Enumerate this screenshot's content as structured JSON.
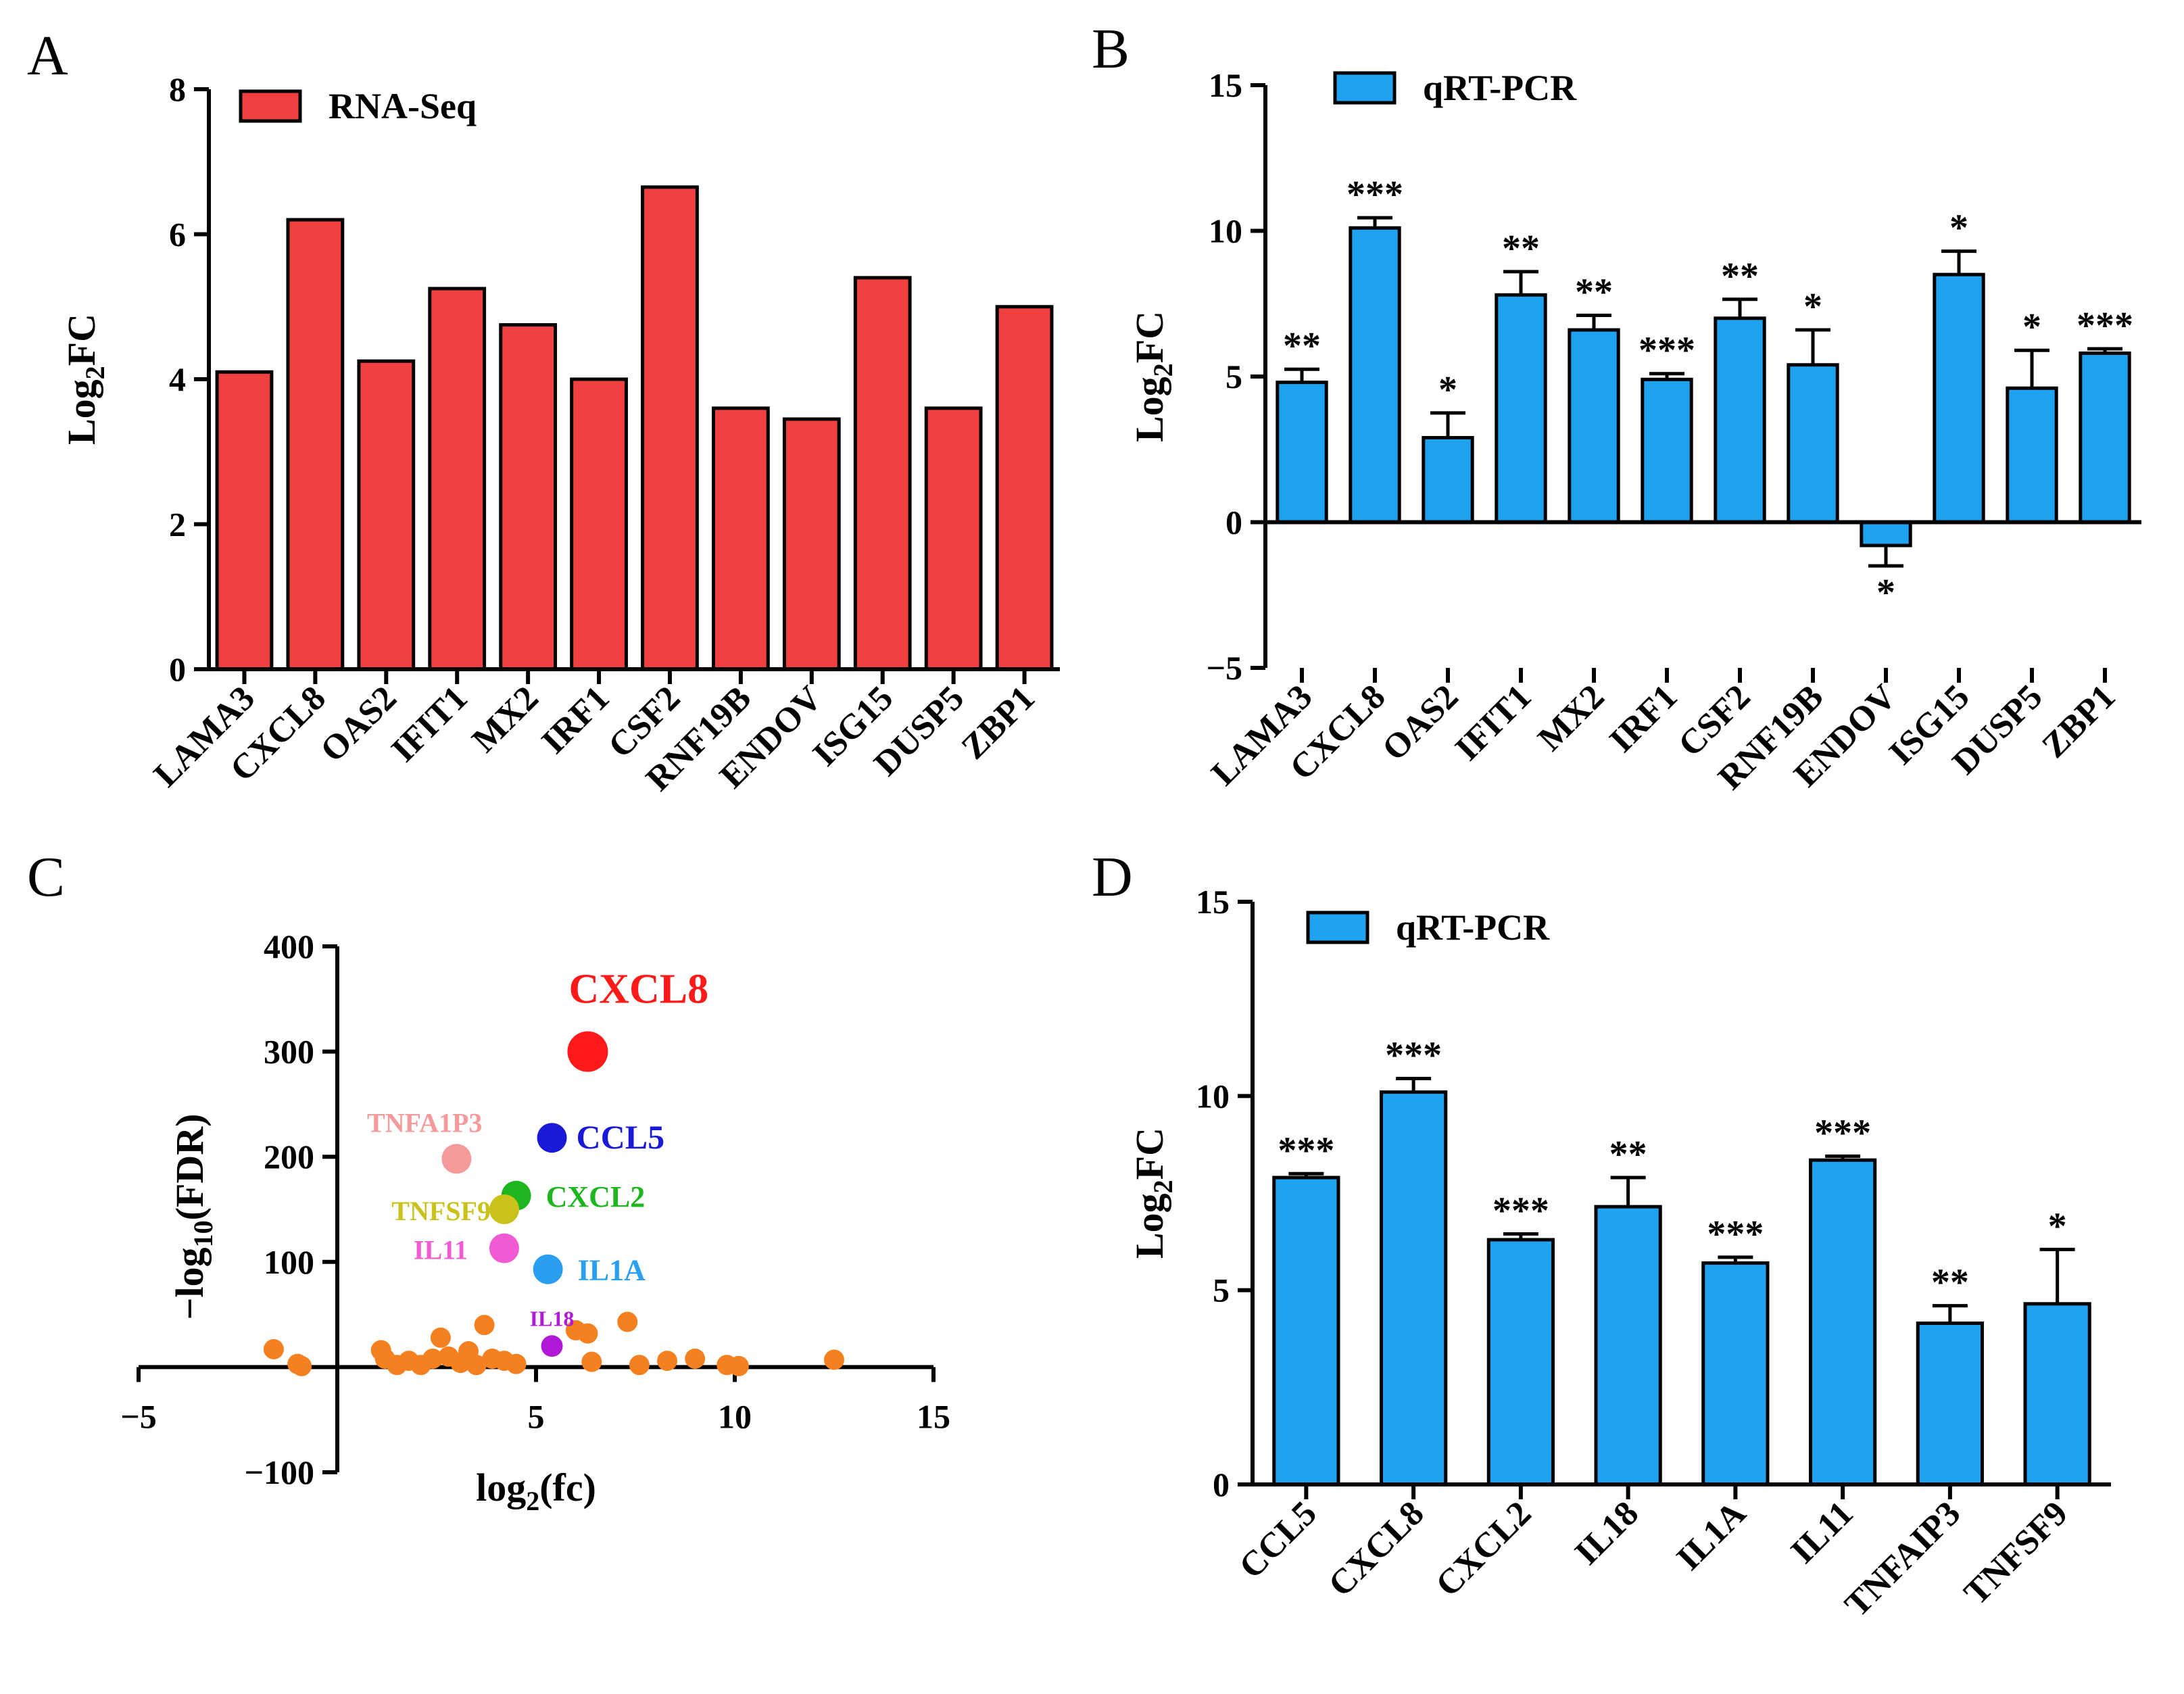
{
  "colors": {
    "rna_bar": "#f04040",
    "qpcr_bar": "#1fa2f0",
    "scatter_default": "#f5801f"
  },
  "chart_data": [
    {
      "panel": "A",
      "type": "bar",
      "legend": "RNA-Seq",
      "ylabel": "Log",
      "ylabel_sub": "2",
      "ylabel_suffix": "FC",
      "ylim": [
        0,
        8
      ],
      "yticks": [
        0,
        2,
        4,
        6,
        8
      ],
      "categories": [
        "LAMA3",
        "CXCL8",
        "OAS2",
        "IFIT1",
        "MX2",
        "IRF1",
        "CSF2",
        "RNF19B",
        "ENDOV",
        "ISG15",
        "DUSP5",
        "ZBP1"
      ],
      "values": [
        4.1,
        6.2,
        4.25,
        5.25,
        4.75,
        4.0,
        6.65,
        3.6,
        3.45,
        5.4,
        3.6,
        5.0
      ]
    },
    {
      "panel": "B",
      "type": "bar",
      "legend": "qRT-PCR",
      "ylabel": "Log",
      "ylabel_sub": "2",
      "ylabel_suffix": "FC",
      "ylim": [
        -5,
        15
      ],
      "yticks": [
        -5,
        0,
        5,
        10,
        15
      ],
      "ytick_labels": [
        "−5",
        "0",
        "5",
        "10",
        "15"
      ],
      "categories": [
        "LAMA3",
        "CXCL8",
        "OAS2",
        "IFIT1",
        "MX2",
        "IRF1",
        "CSF2",
        "RNF19B",
        "ENDOV",
        "ISG15",
        "DUSP5",
        "ZBP1"
      ],
      "values": [
        4.8,
        10.1,
        2.9,
        7.8,
        6.6,
        4.9,
        7.0,
        5.4,
        -0.8,
        8.5,
        4.6,
        5.8
      ],
      "errors": [
        0.45,
        0.35,
        0.85,
        0.8,
        0.5,
        0.2,
        0.65,
        1.2,
        0.7,
        0.8,
        1.3,
        0.15
      ],
      "significance": [
        "**",
        "***",
        "*",
        "**",
        "**",
        "***",
        "**",
        "*",
        "*",
        "*",
        "*",
        "***"
      ]
    },
    {
      "panel": "C",
      "type": "scatter",
      "xlabel": "log",
      "xlabel_sub": "2",
      "xlabel_suffix": "(fc)",
      "ylabel_prefix": "−log",
      "ylabel_sub": "10",
      "ylabel_suffix": "(FDR)",
      "xlim": [
        -5,
        15
      ],
      "ylim": [
        -100,
        400
      ],
      "xticks": [
        -5,
        0,
        5,
        10,
        15
      ],
      "xtick_labels": [
        "−5",
        "",
        "5",
        "10",
        "15"
      ],
      "yticks": [
        -100,
        100,
        200,
        300,
        400
      ],
      "ytick_labels": [
        "−100",
        "100",
        "200",
        "300",
        "400"
      ],
      "labeled_points": [
        {
          "label": "CXCL8",
          "x": 6.3,
          "y": 300,
          "color": "#ff1a1a",
          "size": "large"
        },
        {
          "label": "CCL5",
          "x": 5.4,
          "y": 218,
          "color": "#1a1ad6",
          "size": "medium"
        },
        {
          "label": "TNFA1P3",
          "x": 3.0,
          "y": 198,
          "color": "#f59a9a",
          "size": "medium"
        },
        {
          "label": "CXCL2",
          "x": 4.5,
          "y": 163,
          "color": "#1fb51f",
          "size": "medium"
        },
        {
          "label": "TNFSF9",
          "x": 4.2,
          "y": 150,
          "color": "#c9c21a",
          "size": "medium"
        },
        {
          "label": "IL11",
          "x": 4.2,
          "y": 113,
          "color": "#f05ad2",
          "size": "medium"
        },
        {
          "label": "IL1A",
          "x": 5.3,
          "y": 93,
          "color": "#2a9ff0",
          "size": "medium"
        },
        {
          "label": "IL18",
          "x": 5.4,
          "y": 20,
          "color": "#b01ad6",
          "size": "small"
        }
      ],
      "other_points": [
        [
          -1.6,
          17
        ],
        [
          -1.0,
          3
        ],
        [
          -0.9,
          1
        ],
        [
          1.1,
          16
        ],
        [
          1.2,
          8
        ],
        [
          1.5,
          2
        ],
        [
          1.8,
          6
        ],
        [
          2.1,
          2
        ],
        [
          2.4,
          8
        ],
        [
          2.6,
          28
        ],
        [
          2.8,
          10
        ],
        [
          3.1,
          4
        ],
        [
          3.3,
          15
        ],
        [
          3.5,
          2
        ],
        [
          3.7,
          40
        ],
        [
          3.9,
          8
        ],
        [
          4.2,
          6
        ],
        [
          4.5,
          3
        ],
        [
          6.0,
          35
        ],
        [
          6.3,
          32
        ],
        [
          6.4,
          5
        ],
        [
          7.3,
          43
        ],
        [
          7.6,
          2
        ],
        [
          8.3,
          6
        ],
        [
          9.0,
          8
        ],
        [
          9.8,
          2
        ],
        [
          10.1,
          1
        ],
        [
          12.5,
          7
        ]
      ]
    },
    {
      "panel": "D",
      "type": "bar",
      "legend": "qRT-PCR",
      "ylabel": "Log",
      "ylabel_sub": "2",
      "ylabel_suffix": "FC",
      "ylim": [
        0,
        15
      ],
      "yticks": [
        0,
        5,
        10,
        15
      ],
      "categories": [
        "CCL5",
        "CXCL8",
        "CXCL2",
        "IL18",
        "IL1A",
        "IL11",
        "TNFAIP3",
        "TNFSF9"
      ],
      "values": [
        7.9,
        10.1,
        6.3,
        7.15,
        5.7,
        8.35,
        4.15,
        4.65
      ],
      "errors": [
        0.1,
        0.35,
        0.15,
        0.75,
        0.15,
        0.1,
        0.45,
        1.4
      ],
      "significance": [
        "***",
        "***",
        "***",
        "**",
        "***",
        "***",
        "**",
        "*"
      ]
    }
  ]
}
